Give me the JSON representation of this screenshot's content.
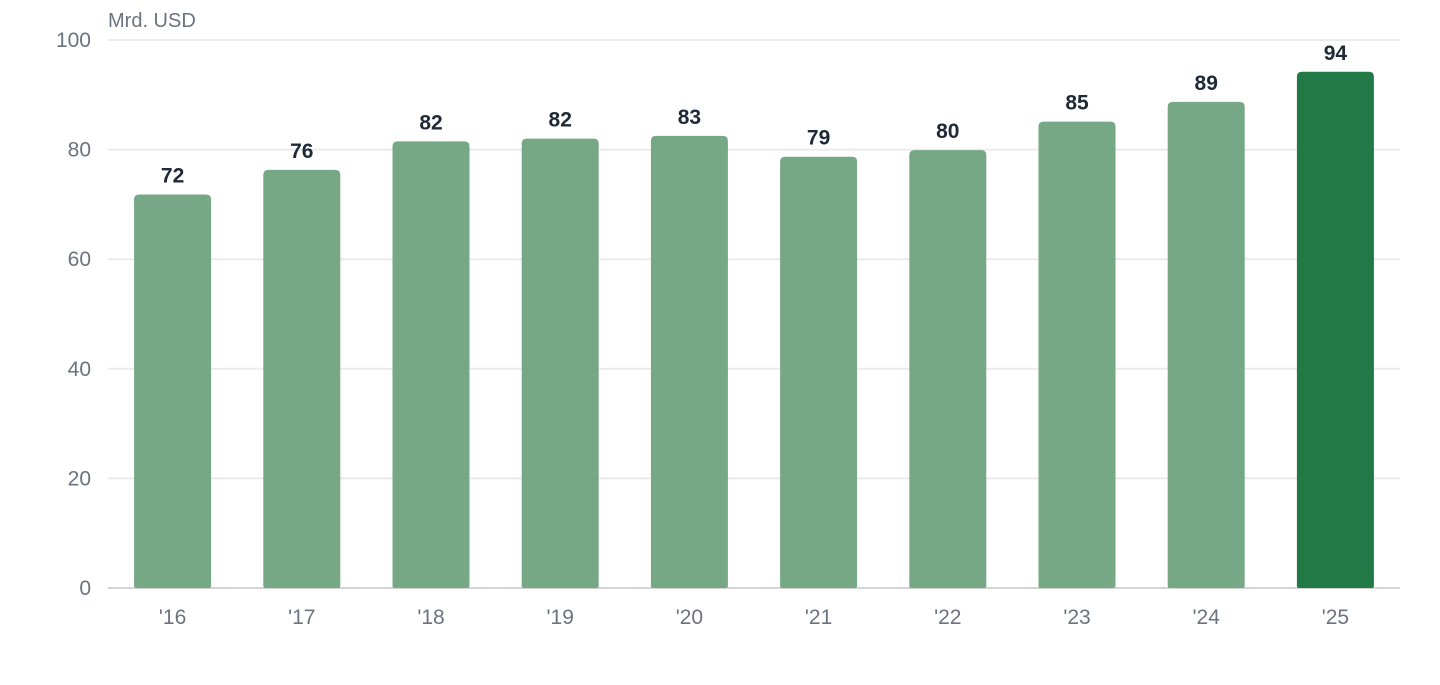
{
  "chart_data": {
    "type": "bar",
    "title": "",
    "xlabel": "",
    "ylabel": "Mrd. USD",
    "categories": [
      "'16",
      "'17",
      "'18",
      "'19",
      "'20",
      "'21",
      "'22",
      "'23",
      "'24",
      "'25"
    ],
    "values": [
      71.8,
      76.3,
      81.5,
      82.0,
      82.5,
      78.7,
      79.9,
      85.1,
      88.7,
      94.2
    ],
    "data_labels": [
      "72",
      "76",
      "82",
      "82",
      "83",
      "79",
      "80",
      "85",
      "89",
      "94"
    ],
    "ylim": [
      0,
      100
    ],
    "yticks": [
      0,
      20,
      40,
      60,
      80,
      100
    ],
    "grid": true,
    "legend": "none",
    "colors": {
      "bar": "#76a886",
      "highlight_bar": "#217a45",
      "highlight_index": 9,
      "grid": "#ebebeb",
      "axis_text": "#6b7280",
      "label_text": "#1f2937"
    }
  }
}
